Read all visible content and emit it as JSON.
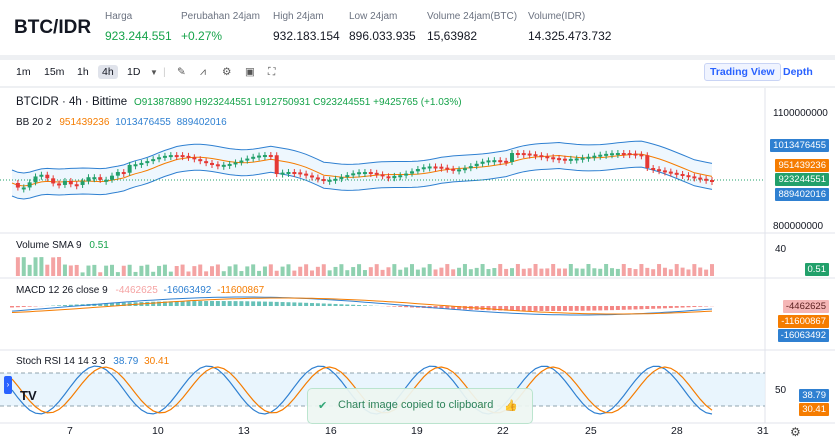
{
  "header": {
    "pair": "BTC/IDR",
    "stats": [
      {
        "label": "Harga",
        "value": "923.244.551",
        "accent": true
      },
      {
        "label": "Perubahan 24jam",
        "value": "+0.27%",
        "accent": true
      },
      {
        "label": "High 24jam",
        "value": "932.183.154",
        "accent": false
      },
      {
        "label": "Low 24jam",
        "value": "896.033.935",
        "accent": false
      },
      {
        "label": "Volume 24jam(BTC)",
        "value": "15,63982",
        "accent": false
      },
      {
        "label": "Volume(IDR)",
        "value": "14.325.473.732",
        "accent": false
      }
    ]
  },
  "toolbar": {
    "intervals": [
      "1m",
      "15m",
      "1h",
      "4h",
      "1D"
    ],
    "selected_interval": "4h",
    "tools": [
      "pencil-icon",
      "indicator-icon",
      "settings-icon",
      "save-icon",
      "fullscreen-icon"
    ],
    "views": [
      "Trading View",
      "Depth"
    ],
    "active_view": "Trading View"
  },
  "chart": {
    "symbol_line": "BTCIDR · 4h · Bittime",
    "ohlc": {
      "o": "913878890",
      "h": "923244551",
      "l": "912750931",
      "c": "923244551",
      "change": "+9425765 (+1.03%)"
    },
    "bb": {
      "label": "BB 20 2",
      "v1": "951439236",
      "v2": "1013476455",
      "v3": "889402016"
    },
    "volume": {
      "label": "Volume SMA 9",
      "value": "0.51"
    },
    "macd": {
      "label": "MACD 12 26 close 9",
      "v1": "-4462625",
      "v2": "-16063492",
      "v3": "-11600867"
    },
    "stoch": {
      "label": "Stoch RSI 14 14 3 3",
      "k": "38.79",
      "d": "30.41"
    },
    "price_axis": [
      "1100000000",
      "800000000"
    ],
    "volume_axis": [
      "40"
    ],
    "stoch_axis": [
      "50"
    ],
    "price_tags": [
      {
        "text": "1013476455",
        "color": "#2f80d1"
      },
      {
        "text": "951439236",
        "color": "#f57c00"
      },
      {
        "text": "923244551",
        "color": "#22a06b"
      },
      {
        "text": "889402016",
        "color": "#2f80d1"
      }
    ],
    "volume_tag": "0.51",
    "macd_tags": [
      {
        "text": "-4462625",
        "color": "#f5a3a3",
        "dark": true
      },
      {
        "text": "-11600867",
        "color": "#f57c00",
        "dark": false
      },
      {
        "text": "-16063492",
        "color": "#2f80d1",
        "dark": false
      }
    ],
    "stoch_tags": [
      {
        "text": "38.79",
        "color": "#2f80d1"
      },
      {
        "text": "30.41",
        "color": "#f57c00"
      }
    ],
    "x_labels": [
      "7",
      "10",
      "13",
      "16",
      "19",
      "22",
      "25",
      "28",
      "31"
    ],
    "toast": "Chart image copied to clipboard"
  }
}
